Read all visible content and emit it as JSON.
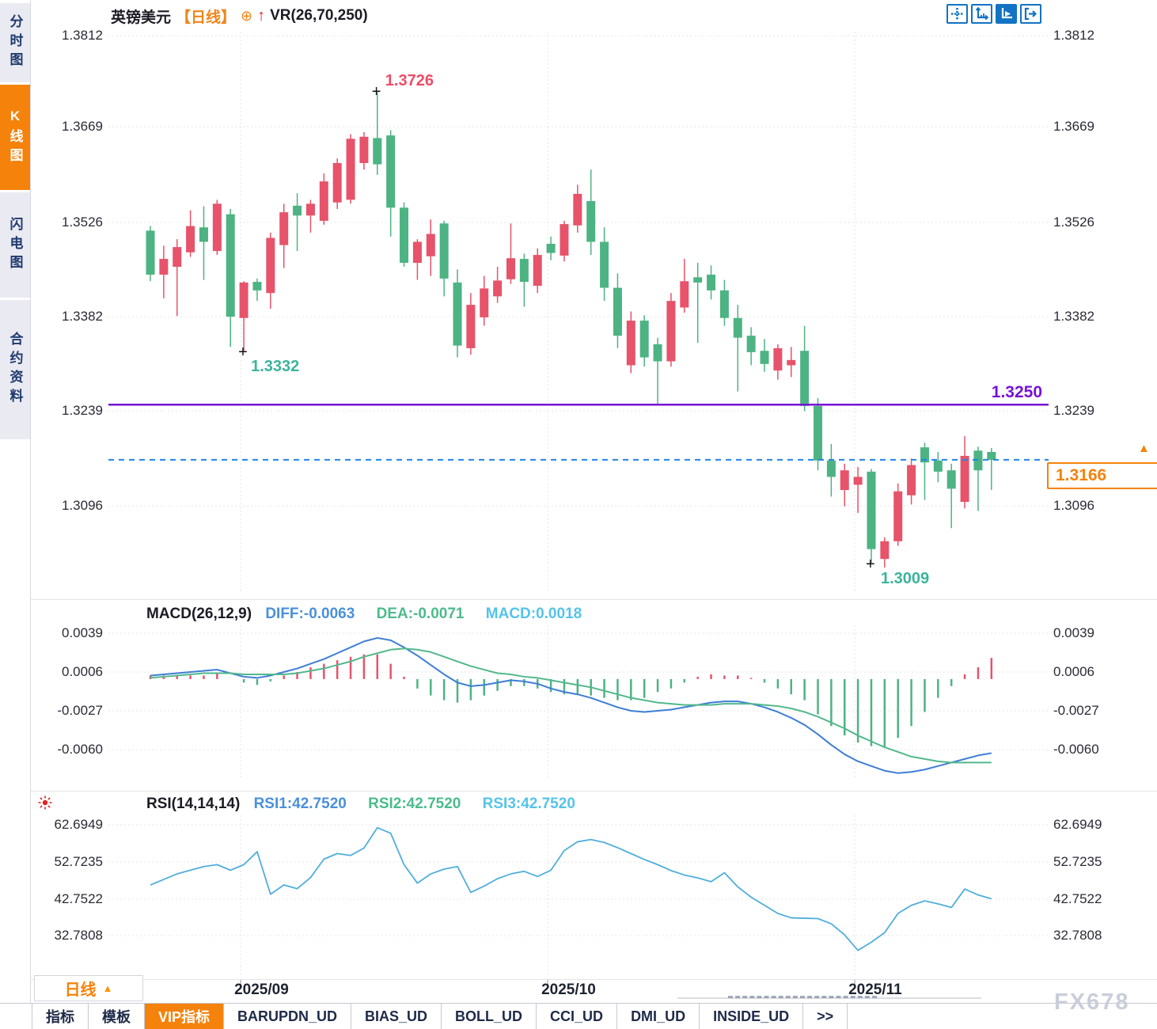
{
  "window": {
    "watermark": "FX678"
  },
  "icons": {
    "circle_plus": "⊕",
    "up_arrow": "↑",
    "marker_plus": "+",
    "period_triangle": "▲",
    "more_tabs": ">>"
  },
  "colors": {
    "up_candle": "#E6536A",
    "down_candle": "#4DB383",
    "diff_line": "#3D7ED5",
    "dea_line": "#52B88C",
    "rsi_line": "#4FAEDC",
    "support_line": "#7712D5",
    "last_price_line": "#1E86E6",
    "accent_orange": "#F5820B",
    "grid": "#E4E4EB",
    "high_label": "#ED4C67",
    "low_label": "#3BB49B"
  },
  "sidebar": {
    "items": [
      {
        "label": "分时图",
        "active": false
      },
      {
        "label": "K线图",
        "active": true
      },
      {
        "label": "闪电图",
        "active": false
      },
      {
        "label": "合约资料",
        "active": false
      }
    ]
  },
  "titlebar": {
    "symbol": "英镑美元",
    "period": "【日线】",
    "indicator": "VR(26,70,250)"
  },
  "toolbar": {
    "buttons": [
      "crosshair",
      "axis-scale",
      "axis-play",
      "exit-marker"
    ]
  },
  "macd_header": {
    "name": "MACD(26,12,9)",
    "diff": "DIFF:-0.0063",
    "dea": "DEA:-0.0071",
    "macd": "MACD:0.0018"
  },
  "rsi_header": {
    "name": "RSI(14,14,14)",
    "rsi1": "RSI1:42.7520",
    "rsi2": "RSI2:42.7520",
    "rsi3": "RSI3:42.7520"
  },
  "period_selector": {
    "label": "日线"
  },
  "bottom_tabs": [
    {
      "label": "指标",
      "active": false
    },
    {
      "label": "模板",
      "active": false
    },
    {
      "label": "VIP指标",
      "active": true
    },
    {
      "label": "BARUPDN_UD",
      "active": false
    },
    {
      "label": "BIAS_UD",
      "active": false
    },
    {
      "label": "BOLL_UD",
      "active": false
    },
    {
      "label": "CCI_UD",
      "active": false
    },
    {
      "label": "DMI_UD",
      "active": false
    },
    {
      "label": "INSIDE_UD",
      "active": false
    },
    {
      "label": ">>",
      "active": false
    }
  ],
  "chart_data": [
    {
      "type": "candlestick",
      "title": "英镑美元 日线",
      "y_ticks": [
        "1.3812",
        "1.3669",
        "1.3526",
        "1.3382",
        "1.3239",
        "1.3096"
      ],
      "y_tick_values": [
        1.3812,
        1.3669,
        1.3526,
        1.3382,
        1.3239,
        1.3096
      ],
      "x_ticks": [
        "2025/09",
        "2025/10",
        "2025/11"
      ],
      "month_start_indices": [
        7,
        30,
        53
      ],
      "grid": true,
      "candles_ohlc": [
        [
          1.3515,
          1.3522,
          1.3438,
          1.3448
        ],
        [
          1.3448,
          1.3492,
          1.3412,
          1.3472
        ],
        [
          1.346,
          1.3502,
          1.3385,
          1.349
        ],
        [
          1.3482,
          1.3546,
          1.3475,
          1.3522
        ],
        [
          1.352,
          1.3552,
          1.344,
          1.3498
        ],
        [
          1.3484,
          1.3562,
          1.3478,
          1.3556
        ],
        [
          1.354,
          1.3548,
          1.3338,
          1.3384
        ],
        [
          1.3382,
          1.3438,
          1.3332,
          1.3436
        ],
        [
          1.3437,
          1.3442,
          1.3408,
          1.3424
        ],
        [
          1.342,
          1.3512,
          1.3396,
          1.3504
        ],
        [
          1.3493,
          1.3556,
          1.3458,
          1.3543
        ],
        [
          1.3553,
          1.3572,
          1.3484,
          1.3538
        ],
        [
          1.3538,
          1.3562,
          1.3512,
          1.3556
        ],
        [
          1.353,
          1.3602,
          1.3524,
          1.359
        ],
        [
          1.3558,
          1.3625,
          1.3548,
          1.3618
        ],
        [
          1.3562,
          1.3662,
          1.3556,
          1.3655
        ],
        [
          1.3618,
          1.3665,
          1.3608,
          1.3658
        ],
        [
          1.3656,
          1.3726,
          1.36,
          1.3616
        ],
        [
          1.366,
          1.3668,
          1.3506,
          1.355
        ],
        [
          1.355,
          1.3558,
          1.346,
          1.3466
        ],
        [
          1.3466,
          1.3502,
          1.344,
          1.3498
        ],
        [
          1.3476,
          1.3532,
          1.3446,
          1.351
        ],
        [
          1.3526,
          1.353,
          1.3415,
          1.3442
        ],
        [
          1.3436,
          1.3456,
          1.3322,
          1.334
        ],
        [
          1.3336,
          1.342,
          1.3326,
          1.3402
        ],
        [
          1.3383,
          1.3446,
          1.337,
          1.3427
        ],
        [
          1.3415,
          1.346,
          1.3405,
          1.3439
        ],
        [
          1.3441,
          1.3526,
          1.3434,
          1.3473
        ],
        [
          1.3472,
          1.348,
          1.3399,
          1.3437
        ],
        [
          1.3431,
          1.3488,
          1.342,
          1.3478
        ],
        [
          1.3495,
          1.3506,
          1.347,
          1.3481
        ],
        [
          1.3477,
          1.353,
          1.3468,
          1.3525
        ],
        [
          1.3523,
          1.3585,
          1.3512,
          1.3571
        ],
        [
          1.356,
          1.3608,
          1.3478,
          1.3498
        ],
        [
          1.3498,
          1.352,
          1.3408,
          1.3428
        ],
        [
          1.3428,
          1.345,
          1.3336,
          1.3355
        ],
        [
          1.331,
          1.3392,
          1.3298,
          1.3378
        ],
        [
          1.3378,
          1.3386,
          1.3308,
          1.3322
        ],
        [
          1.3342,
          1.3352,
          1.325,
          1.3316
        ],
        [
          1.3316,
          1.342,
          1.3308,
          1.3408
        ],
        [
          1.3398,
          1.3472,
          1.339,
          1.3438
        ],
        [
          1.3444,
          1.3466,
          1.3344,
          1.3436
        ],
        [
          1.3448,
          1.3462,
          1.341,
          1.3424
        ],
        [
          1.3424,
          1.344,
          1.337,
          1.3382
        ],
        [
          1.3382,
          1.3402,
          1.327,
          1.3352
        ],
        [
          1.3355,
          1.3368,
          1.331,
          1.333
        ],
        [
          1.3332,
          1.335,
          1.33,
          1.3312
        ],
        [
          1.3302,
          1.3342,
          1.3288,
          1.3336
        ],
        [
          1.331,
          1.3338,
          1.3292,
          1.3318
        ],
        [
          1.3332,
          1.337,
          1.324,
          1.3248
        ],
        [
          1.3248,
          1.326,
          1.315,
          1.3165
        ],
        [
          1.3165,
          1.319,
          1.311,
          1.314
        ],
        [
          1.312,
          1.316,
          1.3095,
          1.315
        ],
        [
          1.3128,
          1.3155,
          1.3085,
          1.314
        ],
        [
          1.3148,
          1.3152,
          1.3009,
          1.303
        ],
        [
          1.3015,
          1.3048,
          1.3002,
          1.3042
        ],
        [
          1.3042,
          1.313,
          1.3035,
          1.3118
        ],
        [
          1.3112,
          1.3168,
          1.3098,
          1.3158
        ],
        [
          1.3185,
          1.3192,
          1.3105,
          1.3162
        ],
        [
          1.3165,
          1.3178,
          1.3132,
          1.3148
        ],
        [
          1.315,
          1.316,
          1.3062,
          1.3122
        ],
        [
          1.3102,
          1.3202,
          1.3092,
          1.3172
        ],
        [
          1.318,
          1.3186,
          1.3088,
          1.315
        ],
        [
          1.3178,
          1.3184,
          1.312,
          1.3166
        ]
      ],
      "annotations": {
        "high": {
          "candle": 17,
          "price": 1.3726,
          "label": "1.3726"
        },
        "low_sep": {
          "candle": 7,
          "price": 1.3332,
          "label": "1.3332"
        },
        "low_nov": {
          "candle": 54,
          "price": 1.3009,
          "label": "1.3009"
        },
        "support_line": {
          "price": 1.325,
          "label": "1.3250"
        },
        "last_price": {
          "price": 1.3166,
          "label": "1.3166"
        }
      }
    },
    {
      "type": "macd-bar-line",
      "y_ticks": [
        "0.0039",
        "0.0006",
        "-0.0027",
        "-0.0060"
      ],
      "y_tick_values": [
        0.0039,
        0.0006,
        -0.0027,
        -0.006
      ],
      "series": [
        {
          "name": "DIFF",
          "values": [
            0.0003,
            0.0004,
            0.0005,
            0.0006,
            0.0007,
            0.0008,
            0.0005,
            0.0002,
            0.0001,
            0.0003,
            0.0006,
            0.0009,
            0.0013,
            0.0017,
            0.0022,
            0.0027,
            0.0032,
            0.0035,
            0.0033,
            0.0027,
            0.002,
            0.0012,
            0.0004,
            -0.0003,
            -0.0006,
            -0.0005,
            -0.0003,
            -0.0001,
            -0.0002,
            -0.0004,
            -0.0008,
            -0.0011,
            -0.0013,
            -0.0016,
            -0.002,
            -0.0024,
            -0.0027,
            -0.0028,
            -0.0027,
            -0.0026,
            -0.0024,
            -0.0022,
            -0.002,
            -0.0019,
            -0.0019,
            -0.0021,
            -0.0024,
            -0.0028,
            -0.0033,
            -0.0039,
            -0.0047,
            -0.0056,
            -0.0064,
            -0.007,
            -0.0074,
            -0.0078,
            -0.008,
            -0.0079,
            -0.0077,
            -0.0074,
            -0.0071,
            -0.0068,
            -0.0065,
            -0.0063
          ]
        },
        {
          "name": "DEA",
          "values": [
            0.0001,
            0.0002,
            0.0003,
            0.0004,
            0.0005,
            0.0005,
            0.0005,
            0.0004,
            0.0004,
            0.0004,
            0.0004,
            0.0005,
            0.0007,
            0.0009,
            0.0012,
            0.0015,
            0.0019,
            0.0022,
            0.0025,
            0.0026,
            0.0025,
            0.0023,
            0.0019,
            0.0015,
            0.0011,
            0.0008,
            0.0005,
            0.0004,
            0.0002,
            0.0001,
            -0.0001,
            -0.0003,
            -0.0005,
            -0.0007,
            -0.001,
            -0.0013,
            -0.0016,
            -0.0018,
            -0.002,
            -0.0021,
            -0.0022,
            -0.0022,
            -0.0022,
            -0.0021,
            -0.0021,
            -0.0021,
            -0.0022,
            -0.0023,
            -0.0025,
            -0.0028,
            -0.0032,
            -0.0037,
            -0.0042,
            -0.0048,
            -0.0053,
            -0.0058,
            -0.0062,
            -0.0066,
            -0.0068,
            -0.007,
            -0.0071,
            -0.0071,
            -0.0071,
            -0.0071
          ]
        },
        {
          "name": "MACD-hist",
          "values": [
            0.0003,
            0.0003,
            0.0003,
            0.0003,
            0.0003,
            0.0005,
            0.0,
            -0.0003,
            -0.0005,
            -0.0002,
            0.0003,
            0.0006,
            0.001,
            0.0013,
            0.0016,
            0.0019,
            0.0021,
            0.0021,
            0.0013,
            0.0002,
            -0.0008,
            -0.0014,
            -0.0018,
            -0.002,
            -0.0018,
            -0.0014,
            -0.001,
            -0.0006,
            -0.0006,
            -0.0008,
            -0.0011,
            -0.0013,
            -0.0013,
            -0.0014,
            -0.0016,
            -0.0018,
            -0.0018,
            -0.0016,
            -0.0011,
            -0.0008,
            -0.0003,
            0.0002,
            0.0004,
            0.0003,
            0.0003,
            0.0001,
            -0.0003,
            -0.0008,
            -0.0013,
            -0.0018,
            -0.003,
            -0.004,
            -0.0048,
            -0.0054,
            -0.0057,
            -0.0058,
            -0.005,
            -0.004,
            -0.0028,
            -0.0016,
            -0.0006,
            0.0004,
            0.001,
            0.0018
          ]
        }
      ]
    },
    {
      "type": "line",
      "y_ticks": [
        "62.6949",
        "52.7235",
        "42.7522",
        "32.7808"
      ],
      "y_tick_values": [
        62.6949,
        52.7235,
        42.7522,
        32.7808
      ],
      "series": [
        {
          "name": "RSI",
          "values": [
            46.5,
            48.0,
            49.5,
            50.5,
            51.5,
            52.0,
            50.5,
            52.0,
            55.5,
            44.0,
            46.5,
            45.5,
            48.5,
            53.5,
            55.0,
            54.5,
            56.5,
            62.0,
            60.5,
            52.0,
            47.0,
            49.5,
            50.8,
            51.5,
            44.5,
            46.2,
            48.2,
            49.5,
            50.2,
            48.8,
            50.5,
            55.8,
            58.2,
            58.8,
            58.0,
            56.6,
            55.0,
            53.4,
            52.0,
            50.4,
            49.2,
            48.4,
            47.4,
            49.8,
            46.0,
            43.2,
            41.0,
            38.8,
            37.6,
            37.5,
            37.4,
            36.0,
            33.0,
            28.8,
            31.0,
            33.6,
            38.8,
            41.0,
            42.2,
            41.4,
            40.4,
            45.4,
            43.8,
            42.75
          ]
        }
      ]
    }
  ]
}
